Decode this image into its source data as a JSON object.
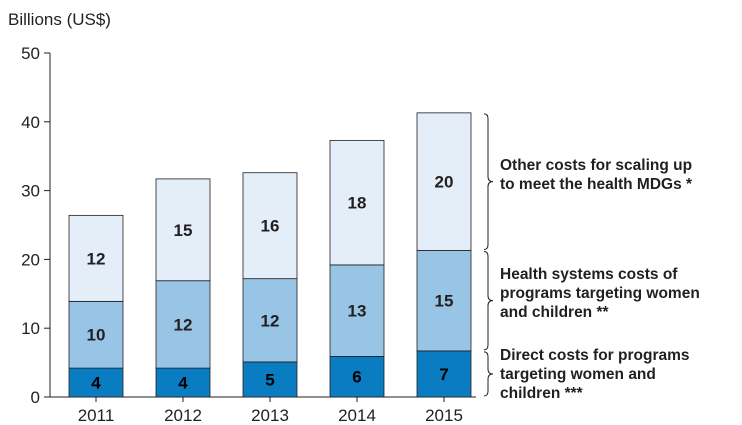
{
  "chart_data": {
    "type": "bar",
    "stacked": true,
    "ylabel": "Billions (US$)",
    "ylim": [
      0,
      50
    ],
    "yticks": [
      "0",
      "10",
      "20",
      "30",
      "40",
      "50"
    ],
    "categories": [
      "2011",
      "2012",
      "2013",
      "2014",
      "2015"
    ],
    "series": [
      {
        "name": "Direct costs for programs targeting women and children ***",
        "color": "#0a7cc1",
        "values": [
          4,
          4,
          5,
          6,
          7
        ],
        "heights": [
          4.2,
          4.2,
          5.1,
          5.9,
          6.7
        ],
        "labels": [
          "4",
          "4",
          "5",
          "6",
          "7"
        ]
      },
      {
        "name": "Health systems costs of programs targeting women and children **",
        "color": "#98c5e6",
        "values": [
          10,
          12,
          12,
          13,
          15
        ],
        "heights": [
          9.7,
          12.7,
          12.1,
          13.3,
          14.6
        ],
        "labels": [
          "10",
          "12",
          "12",
          "13",
          "15"
        ]
      },
      {
        "name": "Other costs for scaling up to meet the health MDGs *",
        "color": "#e3eef8",
        "values": [
          12,
          15,
          16,
          18,
          20
        ],
        "heights": [
          12.5,
          14.8,
          15.4,
          18.1,
          20.0
        ],
        "labels": [
          "12",
          "15",
          "16",
          "18",
          "20"
        ]
      }
    ],
    "legend_placement": "right, bracketed",
    "grid": false
  },
  "legend": {
    "other": [
      "Other costs for scaling up",
      "to meet the health MDGs *"
    ],
    "health": [
      "Health systems costs of",
      "programs targeting women",
      "and children **"
    ],
    "direct": [
      "Direct costs for programs",
      "targeting women and",
      "children ***"
    ]
  }
}
